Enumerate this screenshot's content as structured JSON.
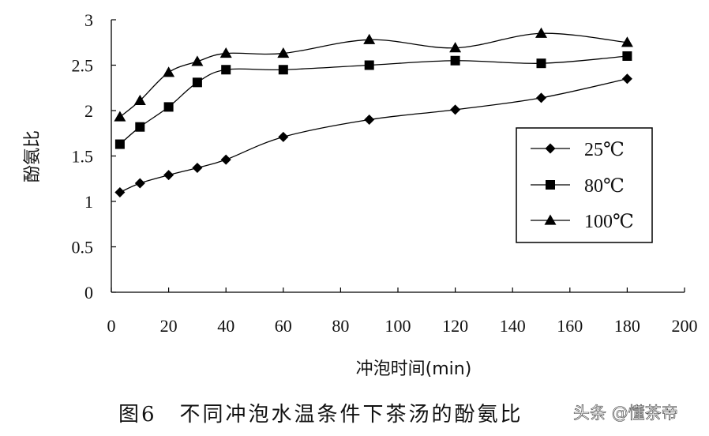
{
  "chart_data": {
    "type": "line",
    "xlabel": "冲泡时间(min)",
    "ylabel": "酚氨比",
    "xlim": [
      0,
      200
    ],
    "ylim": [
      0,
      3
    ],
    "x_ticks": [
      "0",
      "20",
      "40",
      "60",
      "80",
      "100",
      "120",
      "140",
      "160",
      "180",
      "200"
    ],
    "y_ticks": [
      "0",
      "0.5",
      "1",
      "1.5",
      "2",
      "2.5",
      "3"
    ],
    "grid": false,
    "legend_position": "right",
    "x": [
      3,
      10,
      20,
      30,
      40,
      60,
      90,
      120,
      150,
      180
    ],
    "series": [
      {
        "name": "25℃",
        "marker": "diamond",
        "values": [
          1.1,
          1.2,
          1.29,
          1.37,
          1.46,
          1.71,
          1.9,
          2.01,
          2.14,
          2.35
        ]
      },
      {
        "name": "80℃",
        "marker": "square",
        "values": [
          1.63,
          1.82,
          2.04,
          2.31,
          2.45,
          2.45,
          2.5,
          2.55,
          2.52,
          2.6
        ]
      },
      {
        "name": "100℃",
        "marker": "triangle",
        "values": [
          1.93,
          2.11,
          2.42,
          2.54,
          2.63,
          2.63,
          2.78,
          2.69,
          2.85,
          2.75
        ]
      }
    ]
  },
  "caption": "图6　不同冲泡水温条件下茶汤的酚氨比",
  "watermark": "头条 @懂茶帝",
  "colors": {
    "line": "#000000",
    "background": "#ffffff"
  }
}
